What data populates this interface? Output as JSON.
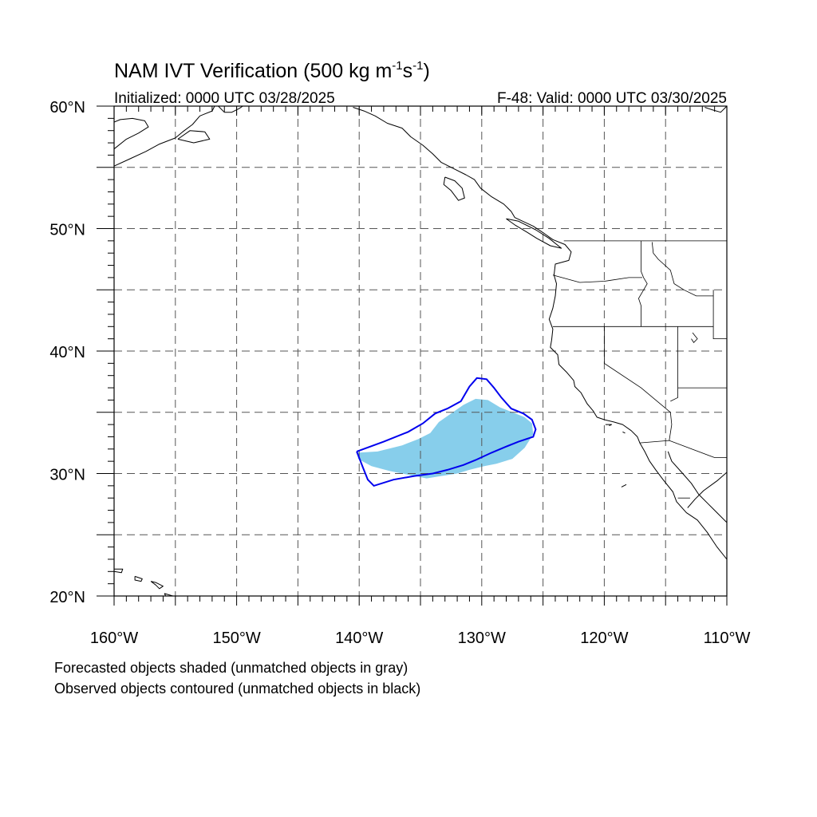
{
  "title": {
    "main": "NAM IVT Verification (500 kg m",
    "sup1": "-1",
    "mid": "s",
    "sup2": "-1",
    "end": ")"
  },
  "init_label": "Initialized: 0000 UTC 03/28/2025",
  "valid_label": "F-48: Valid: 0000 UTC 03/30/2025",
  "captions": {
    "forecast": "Forecasted objects shaded (unmatched objects in gray)",
    "observed": "Observed objects contoured (unmatched objects in black)"
  },
  "map": {
    "lon_range": [
      -160,
      -110
    ],
    "lat_range": [
      20,
      60
    ],
    "gridlines": "dashed every 5 degrees",
    "lon_ticks": [
      {
        "lon": -160,
        "label": "160°W"
      },
      {
        "lon": -150,
        "label": "150°W"
      },
      {
        "lon": -140,
        "label": "140°W"
      },
      {
        "lon": -130,
        "label": "130°W"
      },
      {
        "lon": -120,
        "label": "120°W"
      },
      {
        "lon": -110,
        "label": "110°W"
      }
    ],
    "lat_ticks": [
      {
        "lat": 60,
        "label": "60°N"
      },
      {
        "lat": 50,
        "label": "50°N"
      },
      {
        "lat": 40,
        "label": "40°N"
      },
      {
        "lat": 30,
        "label": "30°N"
      },
      {
        "lat": 20,
        "label": "20°N"
      }
    ],
    "colors": {
      "forecast_fill": "#87ceeb",
      "observed_contour": "#0000ee",
      "coast": "#000000",
      "grid": "#555555"
    }
  },
  "forecast_object": {
    "points": [
      [
        -140.1,
        31.7
      ],
      [
        -138.5,
        31.8
      ],
      [
        -136.5,
        32.3
      ],
      [
        -135.2,
        32.8
      ],
      [
        -134.2,
        33.3
      ],
      [
        -133.5,
        34.2
      ],
      [
        -132.5,
        34.9
      ],
      [
        -131.5,
        35.6
      ],
      [
        -130.5,
        36.1
      ],
      [
        -129.5,
        36.0
      ],
      [
        -128.5,
        35.4
      ],
      [
        -127.5,
        35.0
      ],
      [
        -126.5,
        34.6
      ],
      [
        -125.9,
        34.1
      ],
      [
        -125.8,
        33.2
      ],
      [
        -126.5,
        32.1
      ],
      [
        -127.5,
        31.2
      ],
      [
        -128.8,
        30.8
      ],
      [
        -129.8,
        30.6
      ],
      [
        -131.0,
        30.3
      ],
      [
        -132.0,
        30.0
      ],
      [
        -133.3,
        29.8
      ],
      [
        -134.5,
        29.6
      ],
      [
        -136.0,
        29.9
      ],
      [
        -137.5,
        30.2
      ],
      [
        -139.0,
        30.6
      ],
      [
        -140.1,
        31.2
      ]
    ]
  },
  "observed_object": {
    "points": [
      [
        -140.2,
        31.8
      ],
      [
        -138.0,
        32.6
      ],
      [
        -136.0,
        33.4
      ],
      [
        -134.8,
        34.1
      ],
      [
        -133.8,
        34.9
      ],
      [
        -132.8,
        35.3
      ],
      [
        -131.7,
        35.9
      ],
      [
        -131.0,
        37.1
      ],
      [
        -130.4,
        37.8
      ],
      [
        -129.6,
        37.7
      ],
      [
        -129.0,
        37.0
      ],
      [
        -128.4,
        36.2
      ],
      [
        -127.6,
        35.3
      ],
      [
        -126.6,
        34.9
      ],
      [
        -125.9,
        34.4
      ],
      [
        -125.6,
        33.6
      ],
      [
        -125.8,
        33.0
      ],
      [
        -127.0,
        32.6
      ],
      [
        -128.0,
        32.2
      ],
      [
        -129.2,
        31.7
      ],
      [
        -130.5,
        31.1
      ],
      [
        -131.5,
        30.7
      ],
      [
        -132.8,
        30.3
      ],
      [
        -134.0,
        30.0
      ],
      [
        -135.5,
        29.8
      ],
      [
        -137.2,
        29.5
      ],
      [
        -138.8,
        29.0
      ],
      [
        -139.3,
        29.5
      ],
      [
        -139.7,
        30.5
      ],
      [
        -140.2,
        31.8
      ]
    ]
  },
  "coastlines": [
    [
      [
        -160,
        56.5
      ],
      [
        -159,
        57.3
      ],
      [
        -158,
        57.8
      ],
      [
        -157.2,
        58.3
      ],
      [
        -157.5,
        58.8
      ],
      [
        -158.5,
        59.0
      ],
      [
        -159.5,
        58.9
      ],
      [
        -160,
        58.7
      ]
    ],
    [
      [
        -160,
        55.1
      ],
      [
        -158.7,
        55.7
      ],
      [
        -157.4,
        56.3
      ],
      [
        -156.3,
        56.9
      ],
      [
        -155.0,
        57.4
      ],
      [
        -154.4,
        57.9
      ],
      [
        -153.6,
        58.5
      ],
      [
        -153.0,
        59.2
      ],
      [
        -152.0,
        59.6
      ],
      [
        -151.8,
        60.0
      ]
    ],
    [
      [
        -154.8,
        57.3
      ],
      [
        -153.5,
        57.0
      ],
      [
        -152.2,
        57.3
      ],
      [
        -152.6,
        57.9
      ],
      [
        -153.8,
        58.0
      ],
      [
        -154.8,
        57.3
      ]
    ],
    [
      [
        -151.5,
        60.0
      ],
      [
        -151.0,
        59.5
      ],
      [
        -150.4,
        59.5
      ],
      [
        -149.8,
        59.8
      ],
      [
        -149.5,
        60.0
      ]
    ],
    [
      [
        -148.3,
        60.0
      ],
      [
        -146.5,
        60.0
      ],
      [
        -145.0,
        60.0
      ],
      [
        -143.5,
        60.0
      ],
      [
        -142.0,
        60.0
      ]
    ],
    [
      [
        -140.5,
        59.9
      ],
      [
        -139.6,
        59.6
      ],
      [
        -138.7,
        59.2
      ],
      [
        -137.7,
        58.6
      ],
      [
        -136.5,
        58.2
      ],
      [
        -135.8,
        57.5
      ],
      [
        -134.8,
        56.8
      ],
      [
        -134.0,
        56.1
      ],
      [
        -133.3,
        55.4
      ],
      [
        -132.3,
        54.9
      ],
      [
        -131.3,
        54.4
      ],
      [
        -130.6,
        54.0
      ],
      [
        -130.1,
        53.3
      ],
      [
        -129.2,
        52.6
      ],
      [
        -128.2,
        52.0
      ],
      [
        -127.6,
        51.4
      ],
      [
        -127.3,
        50.9
      ],
      [
        -125.8,
        50.2
      ],
      [
        -124.9,
        49.6
      ],
      [
        -124.2,
        49.1
      ],
      [
        -123.2,
        48.7
      ],
      [
        -122.7,
        48.1
      ],
      [
        -122.9,
        47.4
      ],
      [
        -124.0,
        47.1
      ],
      [
        -124.1,
        46.2
      ],
      [
        -123.9,
        45.5
      ],
      [
        -124.0,
        44.5
      ],
      [
        -124.2,
        43.5
      ],
      [
        -124.5,
        42.6
      ],
      [
        -124.2,
        41.8
      ],
      [
        -124.3,
        40.9
      ],
      [
        -124.4,
        40.3
      ],
      [
        -123.8,
        39.7
      ],
      [
        -123.7,
        38.9
      ],
      [
        -123.1,
        38.3
      ],
      [
        -122.5,
        37.6
      ],
      [
        -122.4,
        37.1
      ],
      [
        -121.9,
        36.6
      ],
      [
        -121.4,
        35.7
      ],
      [
        -120.9,
        35.1
      ],
      [
        -120.6,
        34.6
      ],
      [
        -120.0,
        34.4
      ],
      [
        -119.2,
        34.2
      ],
      [
        -118.5,
        34.0
      ],
      [
        -117.8,
        33.5
      ],
      [
        -117.3,
        33.0
      ],
      [
        -117.1,
        32.5
      ],
      [
        -116.7,
        31.8
      ],
      [
        -116.3,
        31.0
      ],
      [
        -115.8,
        30.3
      ],
      [
        -115.2,
        29.5
      ],
      [
        -114.4,
        28.5
      ],
      [
        -114.1,
        27.7
      ],
      [
        -113.3,
        26.8
      ],
      [
        -112.4,
        26.2
      ],
      [
        -111.6,
        25.2
      ],
      [
        -110.8,
        24.0
      ],
      [
        -110.0,
        23.0
      ]
    ],
    [
      [
        -133.0,
        54.2
      ],
      [
        -132.2,
        53.9
      ],
      [
        -131.6,
        53.3
      ],
      [
        -131.4,
        52.5
      ],
      [
        -131.9,
        52.3
      ],
      [
        -132.5,
        53.1
      ],
      [
        -133.1,
        53.6
      ],
      [
        -133.0,
        54.2
      ]
    ],
    [
      [
        -128.0,
        50.8
      ],
      [
        -127.3,
        50.3
      ],
      [
        -126.3,
        49.7
      ],
      [
        -125.5,
        49.2
      ],
      [
        -124.4,
        48.6
      ],
      [
        -123.5,
        48.4
      ],
      [
        -124.5,
        49.2
      ],
      [
        -125.6,
        49.9
      ],
      [
        -127.0,
        50.6
      ],
      [
        -128.0,
        50.8
      ]
    ],
    [
      [
        -114.8,
        31.8
      ],
      [
        -114.5,
        31.0
      ],
      [
        -113.6,
        30.0
      ],
      [
        -112.9,
        29.2
      ],
      [
        -112.3,
        28.3
      ],
      [
        -111.6,
        27.6
      ],
      [
        -110.8,
        26.8
      ],
      [
        -110.0,
        26.0
      ]
    ],
    [
      [
        -110,
        30.1
      ],
      [
        -110.8,
        29.4
      ],
      [
        -111.9,
        28.6
      ],
      [
        -112.6,
        27.9
      ],
      [
        -113.2,
        27.2
      ]
    ],
    [
      [
        -110,
        60.0
      ],
      [
        -110.5,
        59.5
      ],
      [
        -111.2,
        59.7
      ],
      [
        -111.8,
        59.9
      ]
    ],
    [
      [
        -160,
        22.2
      ],
      [
        -159.3,
        22.2
      ],
      [
        -159.4,
        21.9
      ],
      [
        -160,
        22.0
      ]
    ],
    [
      [
        -158.3,
        21.6
      ],
      [
        -157.7,
        21.4
      ],
      [
        -157.8,
        21.2
      ],
      [
        -158.3,
        21.3
      ],
      [
        -158.3,
        21.6
      ]
    ],
    [
      [
        -157.0,
        21.2
      ],
      [
        -156.6,
        21.1
      ],
      [
        -156.0,
        20.8
      ],
      [
        -156.3,
        20.6
      ],
      [
        -156.6,
        20.9
      ],
      [
        -157.0,
        21.2
      ]
    ],
    [
      [
        -155.9,
        20.2
      ],
      [
        -155.2,
        20.0
      ],
      [
        -154.9,
        19.6
      ],
      [
        -155.5,
        19.5
      ],
      [
        -155.9,
        20.2
      ]
    ],
    [
      [
        -119.9,
        34.0
      ],
      [
        -119.4,
        34.0
      ],
      [
        -119.6,
        33.9
      ]
    ],
    [
      [
        -118.5,
        33.4
      ],
      [
        -118.3,
        33.3
      ]
    ],
    [
      [
        -118.6,
        28.9
      ],
      [
        -118.2,
        29.1
      ]
    ]
  ],
  "borders": [
    [
      [
        -123.3,
        49.0
      ],
      [
        -122.0,
        49.0
      ],
      [
        -118.0,
        49.0
      ],
      [
        -114.0,
        49.0
      ],
      [
        -110,
        49.0
      ]
    ],
    [
      [
        -117.0,
        49.0
      ],
      [
        -117.0,
        46.5
      ],
      [
        -116.8,
        46.0
      ],
      [
        -116.5,
        45.5
      ],
      [
        -117.2,
        44.3
      ],
      [
        -117.0,
        43.7
      ],
      [
        -117.0,
        42.0
      ]
    ],
    [
      [
        -124.2,
        46.2
      ],
      [
        -122.0,
        45.6
      ],
      [
        -120.0,
        45.7
      ],
      [
        -118.0,
        46.0
      ],
      [
        -116.9,
        46.0
      ]
    ],
    [
      [
        -124.2,
        42.0
      ],
      [
        -120.0,
        42.0
      ],
      [
        -117.0,
        42.0
      ],
      [
        -114.0,
        42.0
      ],
      [
        -111.1,
        42.0
      ]
    ],
    [
      [
        -120.0,
        42.0
      ],
      [
        -120.0,
        39.0
      ],
      [
        -117.0,
        37.0
      ],
      [
        -114.6,
        35.0
      ],
      [
        -114.5,
        34.0
      ],
      [
        -114.7,
        32.7
      ]
    ],
    [
      [
        -114.0,
        42.0
      ],
      [
        -114.0,
        37.0
      ],
      [
        -114.0,
        36.2
      ],
      [
        -114.6,
        35.9
      ]
    ],
    [
      [
        -117.1,
        32.5
      ],
      [
        -114.7,
        32.7
      ],
      [
        -111.0,
        31.3
      ],
      [
        -110,
        31.3
      ]
    ],
    [
      [
        -116.1,
        48.9
      ],
      [
        -116.0,
        48.0
      ],
      [
        -115.6,
        47.5
      ],
      [
        -114.6,
        46.6
      ],
      [
        -114.3,
        45.5
      ],
      [
        -113.5,
        45.0
      ],
      [
        -112.5,
        44.5
      ],
      [
        -111.1,
        44.5
      ]
    ],
    [
      [
        -111.1,
        45.0
      ],
      [
        -111.1,
        41.0
      ],
      [
        -110,
        41.0
      ]
    ],
    [
      [
        -110,
        37.0
      ],
      [
        -114.0,
        37.0
      ]
    ],
    [
      [
        -113.0,
        28.0
      ],
      [
        -114.0,
        28.0
      ]
    ],
    [
      [
        -112.8,
        41.5
      ],
      [
        -112.4,
        41.0
      ],
      [
        -112.7,
        40.7
      ],
      [
        -112.9,
        41.0
      ]
    ]
  ]
}
